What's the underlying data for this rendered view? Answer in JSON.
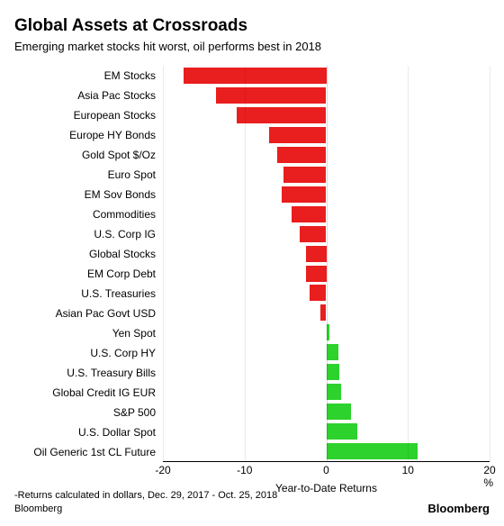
{
  "title": "Global Assets at Crossroads",
  "subtitle": "Emerging market stocks hit worst, oil performs best in 2018",
  "chart": {
    "type": "bar",
    "orientation": "horizontal",
    "xlim": [
      -20,
      20
    ],
    "xticks": [
      -20,
      -10,
      0,
      10,
      20
    ],
    "xtick_labels": [
      "-20",
      "-10",
      "0",
      "10",
      "20 %"
    ],
    "x_title": "Year-to-Date Returns",
    "negative_color": "#e91e1e",
    "positive_color": "#2dd22d",
    "background": "#ffffff",
    "bar_height_ratio": 0.82,
    "label_fontsize": 12,
    "series": [
      {
        "label": "EM Stocks",
        "value": -17.5
      },
      {
        "label": "Asia Pac Stocks",
        "value": -13.5
      },
      {
        "label": "European Stocks",
        "value": -11.0
      },
      {
        "label": "Europe HY Bonds",
        "value": -7.0
      },
      {
        "label": "Gold Spot $/Oz",
        "value": -6.0
      },
      {
        "label": "Euro Spot",
        "value": -5.2
      },
      {
        "label": "EM Sov Bonds",
        "value": -5.5
      },
      {
        "label": "Commodities",
        "value": -4.2
      },
      {
        "label": "U.S. Corp IG",
        "value": -3.2
      },
      {
        "label": "Global Stocks",
        "value": -2.5
      },
      {
        "label": "EM Corp Debt",
        "value": -2.5
      },
      {
        "label": "U.S. Treasuries",
        "value": -2.0
      },
      {
        "label": "Asian Pac Govt USD",
        "value": -0.7
      },
      {
        "label": "Yen Spot",
        "value": 0.4
      },
      {
        "label": "U.S. Corp HY",
        "value": 1.5
      },
      {
        "label": "U.S. Treasury Bills",
        "value": 1.6
      },
      {
        "label": "Global Credit IG EUR",
        "value": 1.8
      },
      {
        "label": "S&P 500",
        "value": 3.0
      },
      {
        "label": "U.S. Dollar Spot",
        "value": 3.8
      },
      {
        "label": "Oil Generic 1st CL Future",
        "value": 11.2
      }
    ]
  },
  "footnote_line1": "-Returns calculated in dollars, Dec. 29, 2017 - Oct. 25, 2018",
  "footnote_line2": "Bloomberg",
  "logo": "Bloomberg"
}
